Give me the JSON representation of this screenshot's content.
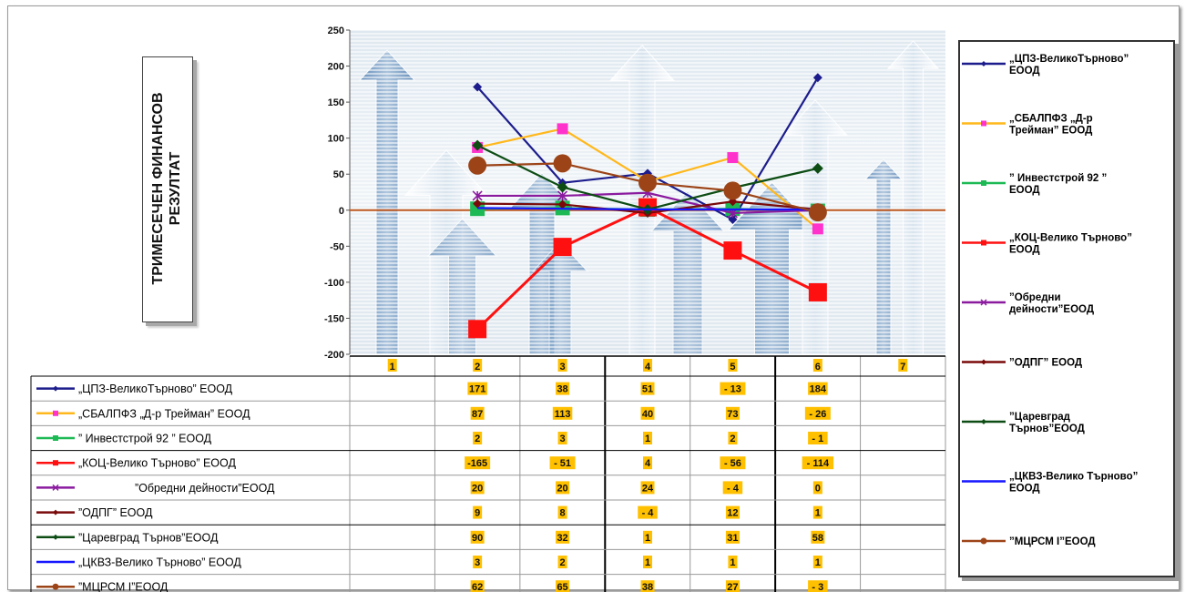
{
  "chart_data": {
    "type": "line",
    "ylabel": "ТРИМЕСЕЧЕН ФИНАНСОВ РЕЗУЛТАТ",
    "categories": [
      "1",
      "2",
      "3",
      "4",
      "5",
      "6",
      "7"
    ],
    "ylim": [
      -200,
      250
    ],
    "yticks": [
      250,
      200,
      150,
      100,
      50,
      0,
      -50,
      -100,
      -150,
      -200
    ],
    "legend_position": "right",
    "grid": true,
    "series": [
      {
        "name": "„ЦПЗ-ВеликоТърново” ЕООД",
        "legend_name": "„ЦПЗ-ВеликоТърново” ЕООД",
        "color": "#1c1c8c",
        "marker": "diamond",
        "values": [
          null,
          171,
          38,
          51,
          -13,
          184,
          null
        ],
        "labels": [
          "",
          "171",
          "38",
          "51",
          "- 13",
          "184",
          ""
        ]
      },
      {
        "name": "„СБАЛПФЗ „Д-р Трейман” ЕООД",
        "legend_name": "„СБАЛПФЗ „Д-р Трейман” ЕООД",
        "color": "#ffb81c",
        "marker": "square",
        "marker_color": "#ff33cc",
        "values": [
          null,
          87,
          113,
          40,
          73,
          -26,
          null
        ],
        "labels": [
          "",
          "87",
          "113",
          "40",
          "73",
          "- 26",
          ""
        ]
      },
      {
        "name": "” Инвестстрой 92 ” ЕООД",
        "legend_name": "” Инвестстрой 92 ” ЕООД",
        "color": "#1db954",
        "marker": "square",
        "values": [
          null,
          2,
          3,
          1,
          2,
          -1,
          null
        ],
        "labels": [
          "",
          "2",
          "3",
          "1",
          "2",
          "- 1",
          ""
        ]
      },
      {
        "name": "„КОЦ-Велико Търново” ЕООД",
        "legend_name": "„КОЦ-Велико Търново” ЕООД",
        "color": "#ff1010",
        "marker": "square",
        "values": [
          null,
          -165,
          -51,
          4,
          -56,
          -114,
          null
        ],
        "labels": [
          "",
          "-165",
          "- 51",
          "4",
          "- 56",
          "- 114",
          ""
        ]
      },
      {
        "name": "”Обредни дейности”ЕООД",
        "legend_name": "”Обредни дейности”ЕООД",
        "color": "#8a1a9e",
        "marker": "star",
        "values": [
          null,
          20,
          20,
          24,
          -4,
          0,
          null
        ],
        "labels": [
          "",
          "20",
          "20",
          "24",
          "- 4",
          "0",
          ""
        ]
      },
      {
        "name": "”ОДПГ” ЕООД",
        "legend_name": "”ОДПГ” ЕООД",
        "color": "#7a0a0a",
        "marker": "diamond",
        "values": [
          null,
          9,
          8,
          -4,
          12,
          1,
          null
        ],
        "labels": [
          "",
          "9",
          "8",
          "- 4",
          "12",
          "1",
          ""
        ]
      },
      {
        "name": "”Царевград Търнов”ЕООД",
        "legend_name": "”Царевград Търнов”ЕООД",
        "color": "#0d4d14",
        "marker": "diamond",
        "values": [
          null,
          90,
          32,
          1,
          31,
          58,
          null
        ],
        "labels": [
          "",
          "90",
          "32",
          "1",
          "31",
          "58",
          ""
        ]
      },
      {
        "name": "„ЦКВЗ-Велико Търново” ЕООД",
        "legend_name": "„ЦКВЗ-Велико Търново” ЕООД",
        "color": "#1717ff",
        "marker": "none",
        "values": [
          null,
          3,
          2,
          1,
          1,
          1,
          null
        ],
        "labels": [
          "",
          "3",
          "2",
          "1",
          "1",
          "1",
          ""
        ]
      },
      {
        "name": "”МЦРСМ I”ЕООД",
        "legend_name": "”МЦРСМ I”ЕООД",
        "color": "#9c4418",
        "marker": "circle",
        "values": [
          null,
          62,
          65,
          38,
          27,
          -3,
          null
        ],
        "labels": [
          "",
          "62",
          "65",
          "38",
          "27",
          "- 3",
          ""
        ]
      }
    ]
  }
}
